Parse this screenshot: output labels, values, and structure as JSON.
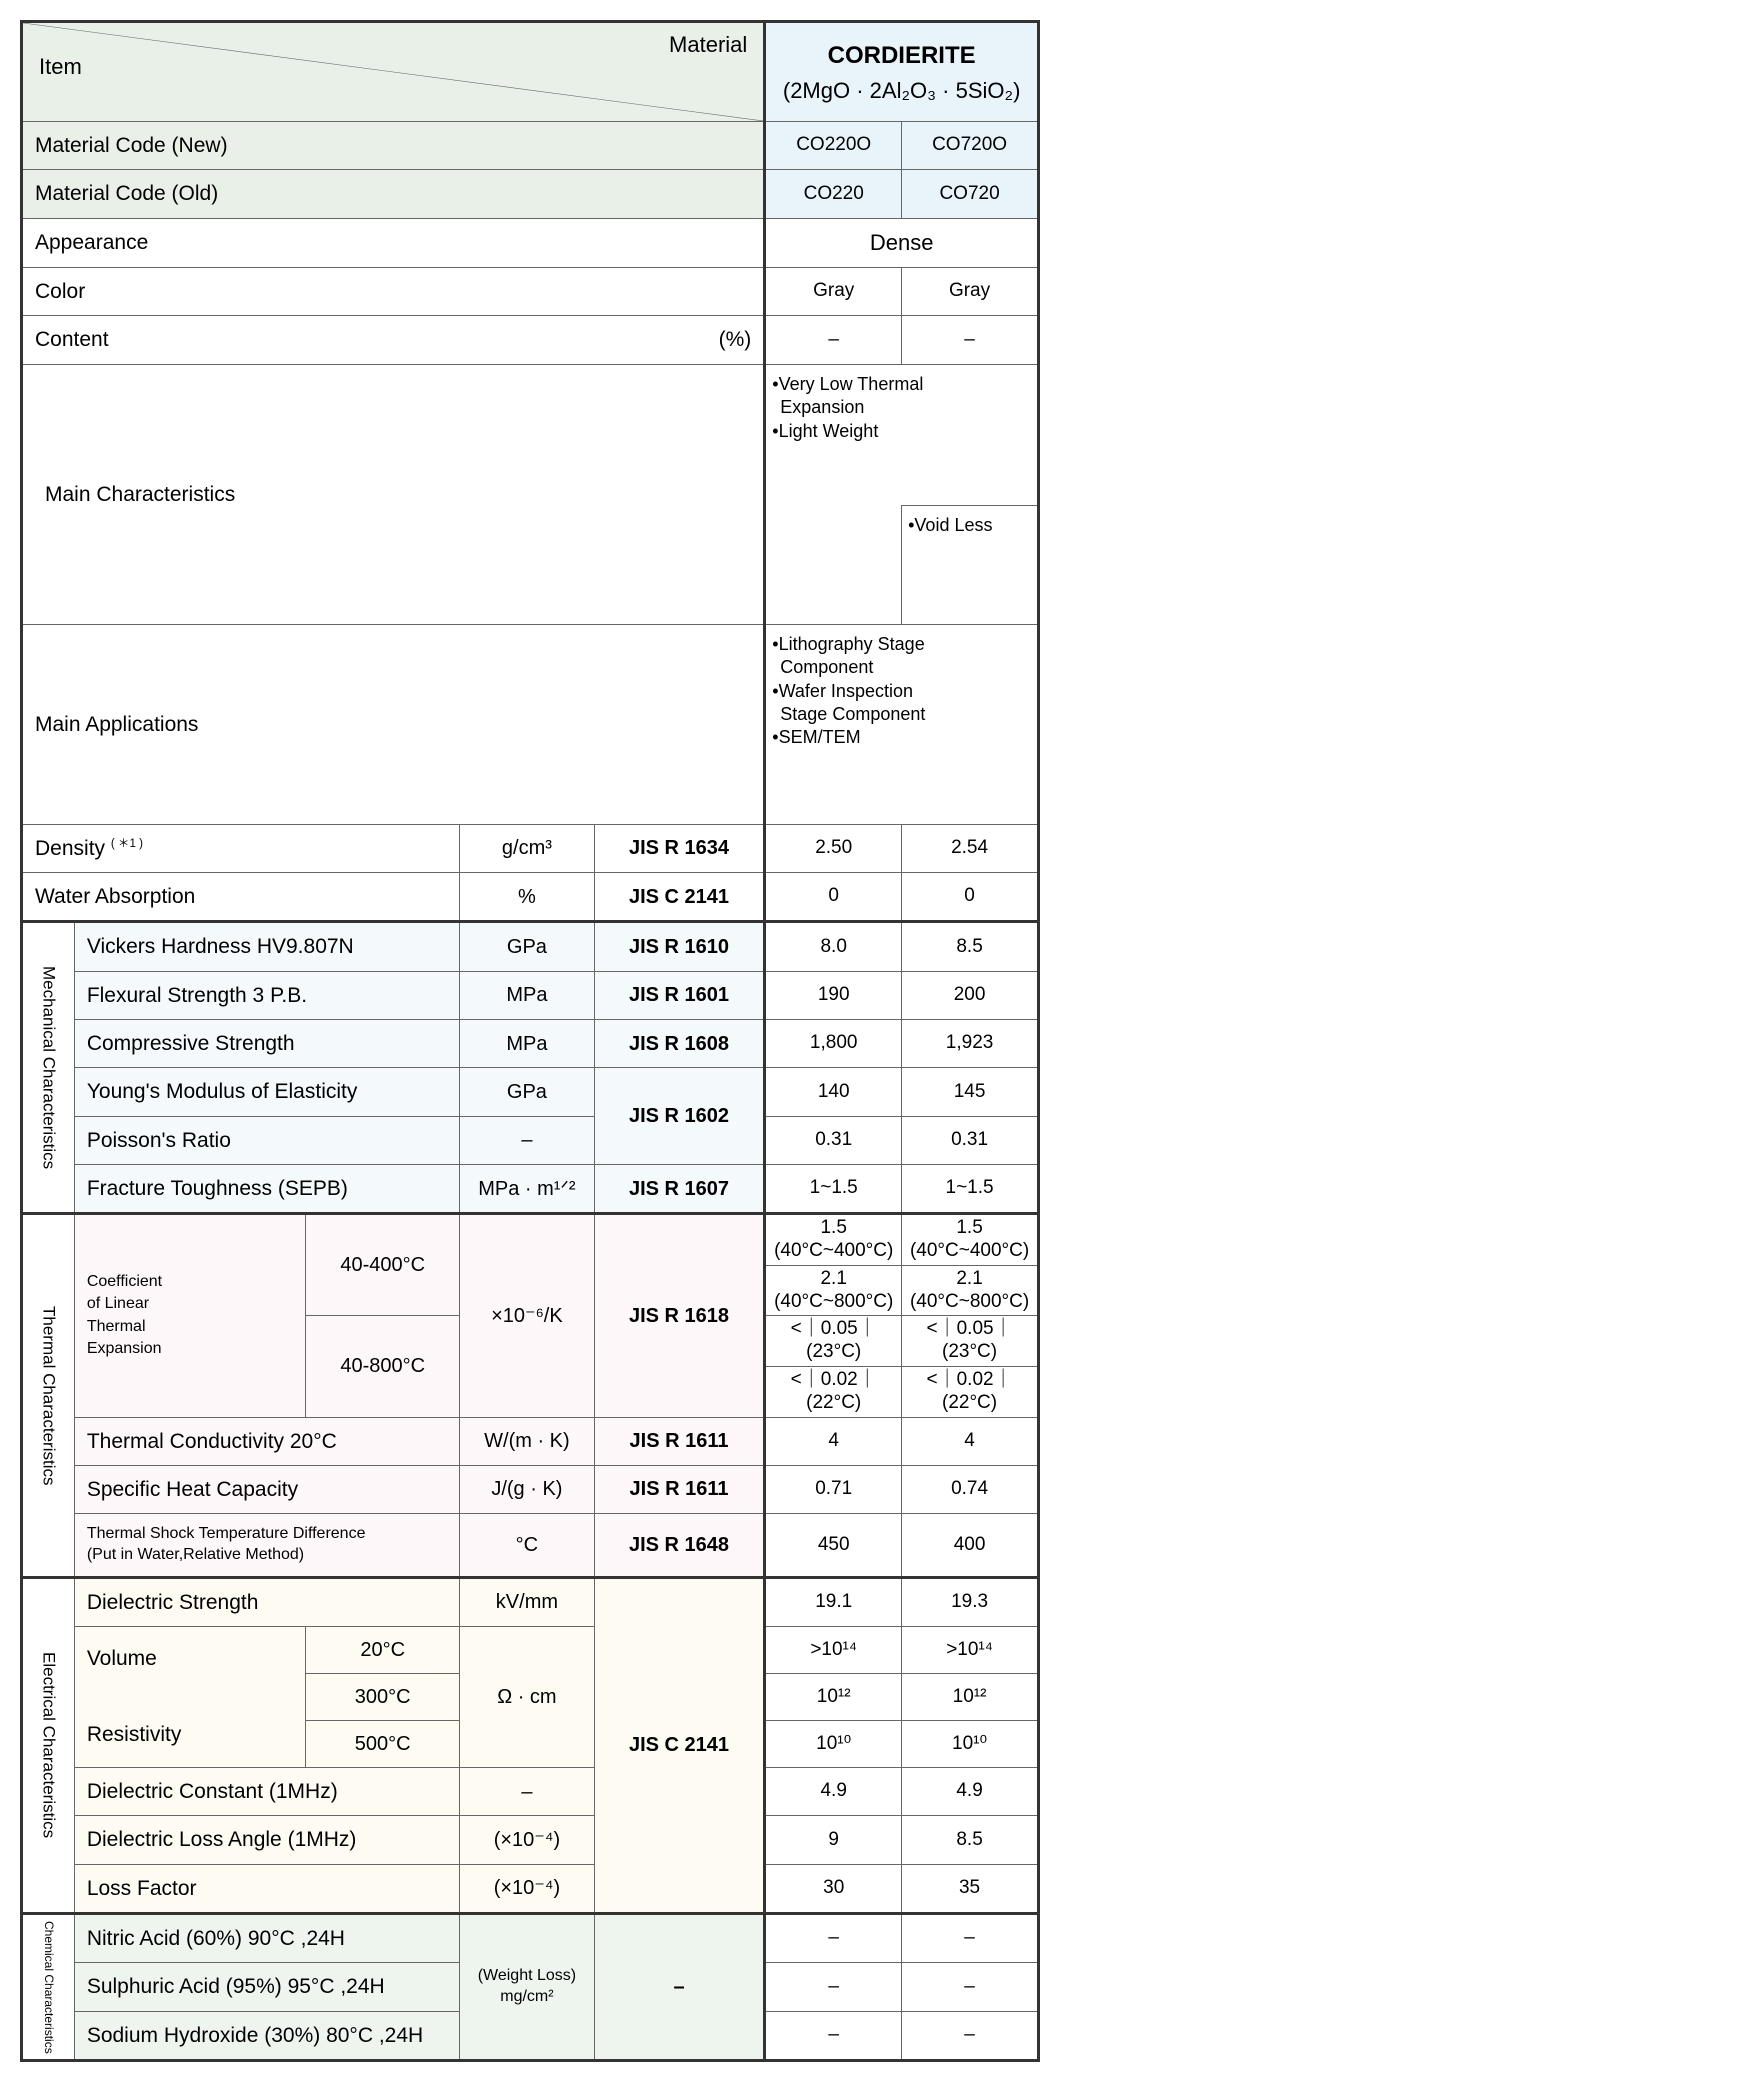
{
  "header": {
    "cornerItem": "Item",
    "cornerMaterial": "Material",
    "materialName": "CORDIERITE",
    "materialFormula": "(2MgO · 2Al₂O₃ · 5SiO₂)"
  },
  "topRows": {
    "codeNew": {
      "label": "Material Code (New)",
      "v1": "CO220O",
      "v2": "CO720O"
    },
    "codeOld": {
      "label": "Material Code (Old)",
      "v1": "CO220",
      "v2": "CO720"
    },
    "appearance": {
      "label": "Appearance",
      "merged": "Dense"
    },
    "color": {
      "label": "Color",
      "v1": "Gray",
      "v2": "Gray"
    },
    "content": {
      "label": "Content",
      "unit": "(%)",
      "v1": "–",
      "v2": "–"
    },
    "mainChar": {
      "label": "Main Characteristics",
      "shared": [
        "Very Low Thermal\n Expansion",
        "Light Weight"
      ],
      "extra": "Void Less"
    },
    "mainApps": {
      "label": "Main Applications",
      "items": [
        "Lithography Stage\n Component",
        "Wafer Inspection\n Stage Component",
        "SEM/TEM"
      ]
    },
    "density": {
      "label": "Density ( ＊1 )",
      "unit": "g/cm³",
      "std": "JIS R 1634",
      "v1": "2.50",
      "v2": "2.54"
    },
    "water": {
      "label": "Water Absorption",
      "unit": "%",
      "std": "JIS C 2141",
      "v1": "0",
      "v2": "0"
    }
  },
  "mechanical": {
    "title": "Mechanical Characteristics",
    "rows": {
      "vickers": {
        "label": "Vickers Hardness HV9.807N",
        "unit": "GPa",
        "std": "JIS R 1610",
        "v1": "8.0",
        "v2": "8.5"
      },
      "flex": {
        "label": "Flexural Strength 3 P.B.",
        "unit": "MPa",
        "std": "JIS R 1601",
        "v1": "190",
        "v2": "200"
      },
      "comp": {
        "label": "Compressive Strength",
        "unit": "MPa",
        "std": "JIS R 1608",
        "v1": "1,800",
        "v2": "1,923"
      },
      "young": {
        "label": "Young's Modulus of Elasticity",
        "unit": "GPa",
        "std": "JIS R 1602",
        "v1": "140",
        "v2": "145"
      },
      "poisson": {
        "label": "Poisson's Ratio",
        "unit": "–",
        "std": "",
        "v1": "0.31",
        "v2": "0.31"
      },
      "fracture": {
        "label": "Fracture Toughness (SEPB)",
        "unit": "MPa · m¹ᐟ²",
        "std": "JIS R 1607",
        "v1": "1~1.5",
        "v2": "1~1.5"
      }
    }
  },
  "thermal": {
    "title": "Thermal Characteristics",
    "coef": {
      "label": "Coefficient\nof Linear\nThermal\nExpansion",
      "range1": "40-400°C",
      "range2": "40-800°C",
      "unit": "×10⁻⁶/K",
      "std": "JIS R 1618",
      "sub": [
        {
          "a": "1.5 (40°C~400°C)",
          "b": "1.5 (40°C~400°C)"
        },
        {
          "a": "2.1 (40°C~800°C)",
          "b": "2.1 (40°C~800°C)"
        },
        {
          "a": "<｜0.05｜(23°C)",
          "b": "<｜0.05｜(23°C)"
        },
        {
          "a": "<｜0.02｜(22°C)",
          "b": "<｜0.02｜(22°C)"
        }
      ]
    },
    "conduct": {
      "label": "Thermal Conductivity  20°C",
      "unit": "W/(m · K)",
      "std": "JIS R 1611",
      "v1": "4",
      "v2": "4"
    },
    "heat": {
      "label": "Specific Heat Capacity",
      "unit": "J/(g · K)",
      "std": "JIS R 1611",
      "v1": "0.71",
      "v2": "0.74"
    },
    "shock": {
      "label": "Thermal Shock Temperature Difference\n(Put in Water,Relative Method)",
      "unit": "°C",
      "std": "JIS R 1648",
      "v1": "450",
      "v2": "400"
    }
  },
  "electrical": {
    "title": "Electrical Characteristics",
    "std": "JIS C 2141",
    "dielStr": {
      "label": "Dielectric Strength",
      "unit": "kV/mm",
      "v1": "19.1",
      "v2": "19.3"
    },
    "volRes": {
      "label": "Volume\n\nResistivity",
      "unit": "Ω · cm",
      "temps": [
        {
          "t": "20°C",
          "v1": ">10¹⁴",
          "v2": ">10¹⁴"
        },
        {
          "t": "300°C",
          "v1": "10¹²",
          "v2": "10¹²"
        },
        {
          "t": "500°C",
          "v1": "10¹⁰",
          "v2": "10¹⁰"
        }
      ]
    },
    "dielConst": {
      "label": "Dielectric Constant (1MHz)",
      "unit": "–",
      "v1": "4.9",
      "v2": "4.9"
    },
    "dielLoss": {
      "label": "Dielectric Loss Angle (1MHz)",
      "unit": "(×10⁻⁴)",
      "v1": "9",
      "v2": "8.5"
    },
    "lossFactor": {
      "label": "Loss Factor",
      "unit": "(×10⁻⁴)",
      "v1": "30",
      "v2": "35"
    }
  },
  "chemical": {
    "title": "Chemical Characteristics",
    "unit": "(Weight Loss)\nmg/cm²",
    "std": "–",
    "rows": {
      "nitric": {
        "label": "Nitric Acid (60%) 90°C ,24H",
        "v1": "–",
        "v2": "–"
      },
      "sulphuric": {
        "label": "Sulphuric Acid (95%) 95°C ,24H",
        "v1": "–",
        "v2": "–"
      },
      "soda": {
        "label": "Sodium Hydroxide (30%) 80°C ,24H",
        "v1": "–",
        "v2": "–"
      }
    }
  },
  "colors": {
    "green": "#e8f0e8",
    "lblue": "#e8f4fa",
    "faintblue": "#f4f9fb",
    "faintpink": "#fdf7fa",
    "faintcream": "#fdfbf2",
    "faintgreen": "#eef4ee"
  }
}
